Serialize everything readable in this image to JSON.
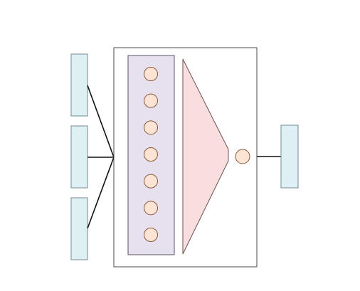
{
  "diagram": {
    "input_blocks": 3,
    "hidden_units": 7,
    "output_units": 1,
    "output_blocks": 1,
    "colors": {
      "background": "#ffffff",
      "input_block_fill": "#dff0f5",
      "input_block_stroke": "#6d8b96",
      "container_stroke": "#4a4a4a",
      "hidden_panel_fill": "#e7e0ee",
      "hidden_panel_stroke": "#5a5560",
      "node_fill": "#fbe4d4",
      "node_stroke": "#8a5a3a",
      "funnel_fill": "#f8dedd",
      "funnel_stroke": "#6a5050",
      "line": "#111111"
    }
  }
}
